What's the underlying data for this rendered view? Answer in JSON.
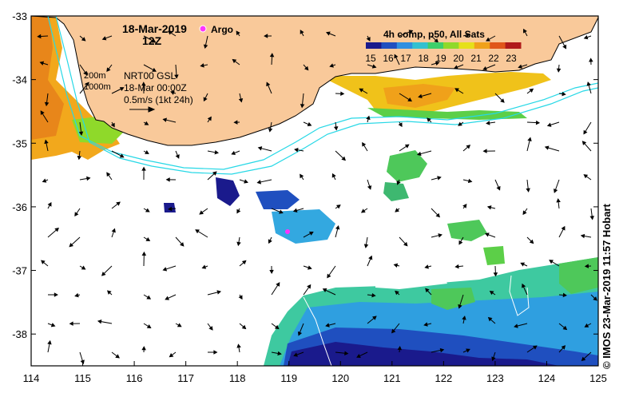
{
  "header": {
    "date": "18-Mar-2019",
    "hour": "12Z",
    "argo_label": "Argo"
  },
  "legend": {
    "title": "4h comp, p50, All Sats",
    "ticks": [
      "15",
      "16",
      "17",
      "18",
      "19",
      "20",
      "21",
      "22",
      "23"
    ],
    "colors": [
      "#1a1a8c",
      "#1f4fbf",
      "#2f8fe0",
      "#33c0d0",
      "#3ecf6a",
      "#8fd92a",
      "#e6e01a",
      "#f0a11a",
      "#e0561a",
      "#b01a1a"
    ]
  },
  "info": {
    "isobath_200": "200m",
    "isobath_1000": "1000m",
    "current_source": "NRT00 GSL",
    "current_time": "18-Mar 00:00Z",
    "scale_label": "0.5m/s (1kt 24h)"
  },
  "axes": {
    "x_ticks": [
      "114",
      "115",
      "116",
      "117",
      "118",
      "119",
      "120",
      "121",
      "122",
      "123",
      "124",
      "125"
    ],
    "y_ticks": [
      "-33",
      "-34",
      "-35",
      "-36",
      "-37",
      "-38"
    ],
    "lon_range": [
      114,
      125
    ],
    "lat_range": [
      -33,
      -38.5
    ]
  },
  "credit": "© IMOS 23-Mar-2019 11:57 Hobart",
  "colors": {
    "land": "#f9c99a",
    "isobath": "#27d8e6",
    "argo": "#ff33ff"
  }
}
